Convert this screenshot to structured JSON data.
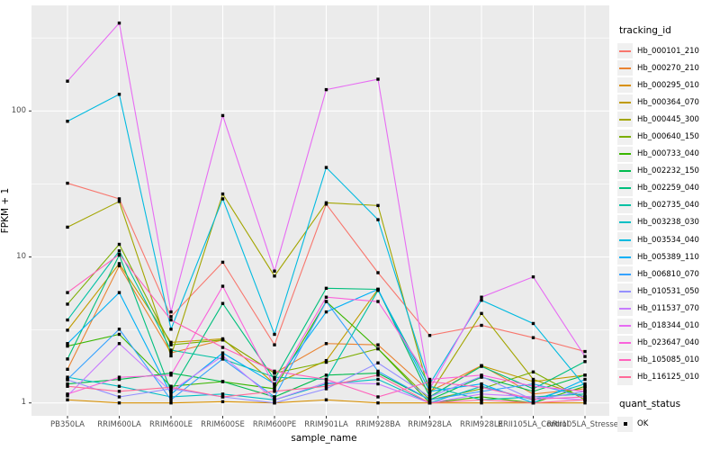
{
  "chart_data": {
    "type": "line",
    "title": "",
    "xlabel": "sample_name",
    "ylabel": "FPKM + 1",
    "y_scale": "log10",
    "y_ticks": [
      1,
      10,
      100
    ],
    "y_minor_ticks": [
      3.162,
      31.62,
      316.2
    ],
    "ylim": [
      0.82,
      530
    ],
    "grid": "on",
    "legend_position": "right",
    "point_marker": "black-square",
    "categories": [
      "PB350LA",
      "RRIM600LA",
      "RRIM600LE",
      "RRIM600SE",
      "RRIM600PE",
      "RRIM901LA",
      "RRIM928BA",
      "RRIM928LA",
      "RRIM928LE",
      "RRII105LA_Control",
      "RRII105LA_Stressed"
    ],
    "series": [
      {
        "name": "Hb_000101_210",
        "color": "#F8766D",
        "values": [
          32,
          25,
          3.9,
          9.2,
          2.5,
          23,
          7.8,
          2.9,
          3.4,
          2.8,
          2.25
        ]
      },
      {
        "name": "Hb_000270_210",
        "color": "#EA8331",
        "values": [
          1.7,
          8.7,
          2.2,
          2.7,
          1.6,
          2.55,
          2.5,
          1.2,
          1.8,
          1.15,
          1.25
        ]
      },
      {
        "name": "Hb_000295_010",
        "color": "#D89000",
        "values": [
          1.05,
          1.0,
          1.0,
          1.02,
          1.0,
          1.05,
          1.0,
          1.0,
          1.0,
          1.0,
          1.0
        ]
      },
      {
        "name": "Hb_000364_070",
        "color": "#C09B00",
        "values": [
          3.15,
          9.0,
          2.6,
          2.75,
          1.35,
          1.95,
          6.0,
          1.1,
          1.8,
          1.4,
          1.55
        ]
      },
      {
        "name": "Hb_000445_300",
        "color": "#A3A500",
        "values": [
          16,
          24,
          2.1,
          27,
          7.4,
          23.5,
          22.5,
          1.15,
          4.1,
          1.45,
          1.1
        ]
      },
      {
        "name": "Hb_000640_150",
        "color": "#7CAE00",
        "values": [
          4.75,
          12.2,
          2.5,
          2.7,
          1.6,
          1.9,
          2.35,
          1.05,
          1.25,
          1.63,
          1.05
        ]
      },
      {
        "name": "Hb_000733_040",
        "color": "#39B600",
        "values": [
          2.45,
          2.95,
          1.3,
          1.4,
          1.25,
          4.95,
          2.35,
          1.0,
          1.1,
          1.0,
          1.3
        ]
      },
      {
        "name": "Hb_002232_150",
        "color": "#00BB4E",
        "values": [
          1.35,
          1.45,
          1.6,
          1.4,
          1.1,
          1.55,
          1.6,
          1.05,
          1.5,
          1.2,
          1.55
        ]
      },
      {
        "name": "Hb_002259_040",
        "color": "#00BF7D",
        "values": [
          2.0,
          10.3,
          1.2,
          4.8,
          1.45,
          6.1,
          6.0,
          1.1,
          1.78,
          1.25,
          1.92
        ]
      },
      {
        "name": "Hb_002735_040",
        "color": "#00C1A3",
        "values": [
          3.7,
          11.0,
          2.3,
          2.0,
          1.5,
          1.45,
          5.9,
          1.3,
          1.05,
          1.1,
          1.15
        ]
      },
      {
        "name": "Hb_003238_030",
        "color": "#00BFC4",
        "values": [
          1.5,
          1.3,
          1.1,
          1.15,
          1.05,
          1.35,
          1.45,
          1.0,
          1.3,
          1.05,
          1.35
        ]
      },
      {
        "name": "Hb_003534_040",
        "color": "#00BAE0",
        "values": [
          85,
          130,
          3.2,
          25,
          2.95,
          41,
          18,
          1.35,
          5.05,
          3.5,
          1.3
        ]
      },
      {
        "name": "Hb_005389_110",
        "color": "#00B0F6",
        "values": [
          2.55,
          5.7,
          1.15,
          2.2,
          1.35,
          4.2,
          6.0,
          1.2,
          1.35,
          1.0,
          1.45
        ]
      },
      {
        "name": "Hb_006810_070",
        "color": "#35A2FF",
        "values": [
          1.45,
          3.2,
          1.05,
          2.0,
          1.1,
          4.95,
          1.65,
          1.05,
          1.2,
          1.35,
          1.1
        ]
      },
      {
        "name": "Hb_010531_050",
        "color": "#9590FF",
        "values": [
          1.44,
          1.1,
          1.25,
          1.1,
          1.0,
          1.25,
          1.88,
          1.1,
          1.52,
          1.05,
          1.2
        ]
      },
      {
        "name": "Hb_011537_070",
        "color": "#C77CFF",
        "values": [
          1.12,
          2.55,
          1.2,
          2.1,
          1.05,
          1.38,
          1.35,
          1.0,
          1.15,
          1.1,
          1.05
        ]
      },
      {
        "name": "Hb_018344_010",
        "color": "#E76BF3",
        "values": [
          160,
          400,
          4.2,
          93,
          8.0,
          140,
          165,
          1.25,
          5.3,
          7.3,
          2.08
        ]
      },
      {
        "name": "Hb_023647_040",
        "color": "#FA62DB",
        "values": [
          1.15,
          1.5,
          1.55,
          6.3,
          1.3,
          5.3,
          4.95,
          1.45,
          1.55,
          1.3,
          1.2
        ]
      },
      {
        "name": "Hb_105085_010",
        "color": "#FF62BC",
        "values": [
          5.7,
          10.4,
          3.7,
          2.4,
          1.65,
          1.45,
          1.1,
          1.4,
          1.28,
          1.06,
          1.1
        ]
      },
      {
        "name": "Hb_116125_010",
        "color": "#FF6A98",
        "values": [
          1.3,
          1.2,
          1.28,
          1.1,
          1.2,
          1.3,
          1.55,
          1.0,
          1.05,
          1.0,
          1.05
        ]
      }
    ]
  },
  "legend": {
    "tracking_title": "tracking_id",
    "quant_title": "quant_status",
    "quant_value": "OK"
  },
  "axes": {
    "x_title": "sample_name",
    "y_title": "FPKM + 1"
  },
  "style_colors": {
    "panel_background": "#EBEBEB",
    "gridline": "#FFFFFF",
    "tick_text": "#4D4D4D",
    "point": "#000000",
    "legend_key_background": "#F0F0F0"
  }
}
